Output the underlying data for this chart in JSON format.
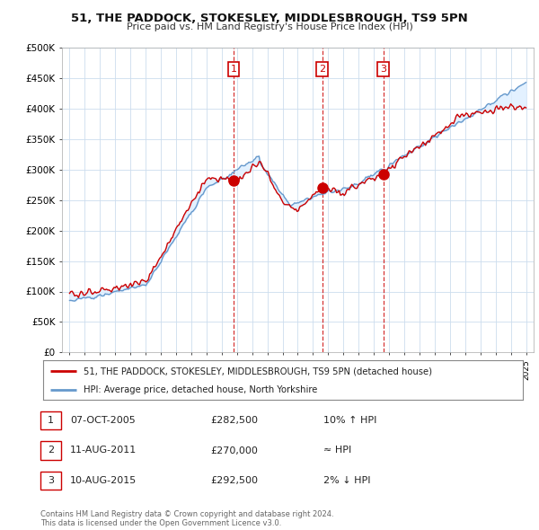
{
  "title1": "51, THE PADDOCK, STOKESLEY, MIDDLESBROUGH, TS9 5PN",
  "title2": "Price paid vs. HM Land Registry's House Price Index (HPI)",
  "ylim": [
    0,
    500000
  ],
  "yticks": [
    0,
    50000,
    100000,
    150000,
    200000,
    250000,
    300000,
    350000,
    400000,
    450000,
    500000
  ],
  "ytick_labels": [
    "£0",
    "£50K",
    "£100K",
    "£150K",
    "£200K",
    "£250K",
    "£300K",
    "£350K",
    "£400K",
    "£450K",
    "£500K"
  ],
  "xlim_start": 1994.5,
  "xlim_end": 2025.5,
  "red_color": "#cc0000",
  "blue_color": "#6699cc",
  "fill_color": "#ddeeff",
  "transaction_dates": [
    2005.77,
    2011.61,
    2015.61
  ],
  "transaction_prices": [
    282500,
    270000,
    292500
  ],
  "transaction_labels": [
    "1",
    "2",
    "3"
  ],
  "legend_line1": "51, THE PADDOCK, STOKESLEY, MIDDLESBROUGH, TS9 5PN (detached house)",
  "legend_line2": "HPI: Average price, detached house, North Yorkshire",
  "table_entries": [
    {
      "label": "1",
      "date": "07-OCT-2005",
      "price": "£282,500",
      "hpi": "10% ↑ HPI"
    },
    {
      "label": "2",
      "date": "11-AUG-2011",
      "price": "£270,000",
      "hpi": "≈ HPI"
    },
    {
      "label": "3",
      "date": "10-AUG-2015",
      "price": "£292,500",
      "hpi": "2% ↓ HPI"
    }
  ],
  "footer": "Contains HM Land Registry data © Crown copyright and database right 2024.\nThis data is licensed under the Open Government Licence v3.0.",
  "bg_color": "#ffffff",
  "grid_color": "#ccddee"
}
